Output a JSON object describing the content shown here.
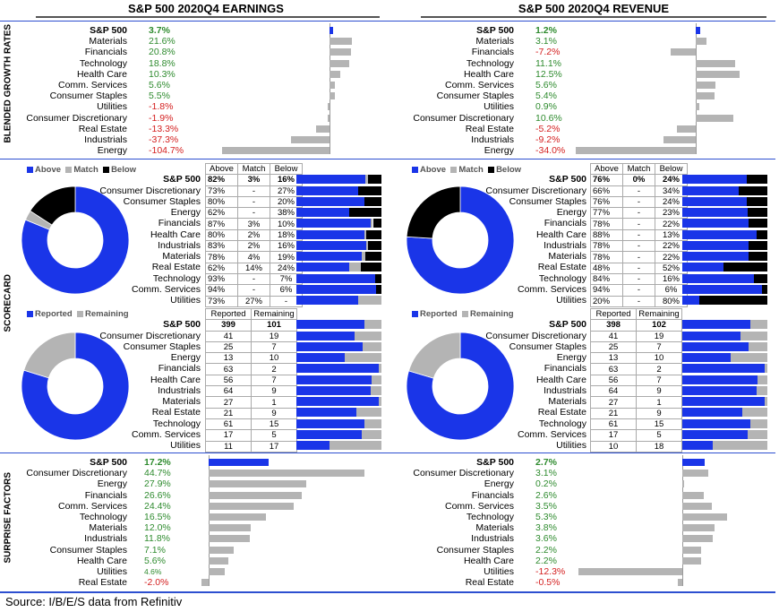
{
  "headers": {
    "earnings": "S&P 500 2020Q4 EARNINGS",
    "revenue": "S&P 500 2020Q4 REVENUE"
  },
  "section_labels": {
    "growth": "BLENDED GROWTH RATES",
    "scorecard": "SCORECARD",
    "surprise": "SURPRISE FACTORS"
  },
  "colors": {
    "blue": "#1a35e8",
    "grey": "#b4b4b4",
    "black": "#000000",
    "positive": "#2e8b2e",
    "negative": "#d42020",
    "rule": "#2d4fd0"
  },
  "legends": {
    "above": "Above",
    "match": "Match",
    "below": "Below",
    "reported": "Reported",
    "remaining": "Remaining"
  },
  "source": "Source: I/B/E/S data from Refinitiv",
  "chart_data": [
    {
      "type": "bar",
      "id": "earnings_growth",
      "categories": [
        "S&P 500",
        "Materials",
        "Financials",
        "Technology",
        "Health Care",
        "Comm. Services",
        "Consumer Staples",
        "Utilities",
        "Consumer Discretionary",
        "Real Estate",
        "Industrials",
        "Energy"
      ],
      "labels": [
        "3.7%",
        "21.6%",
        "20.8%",
        "18.8%",
        "10.3%",
        "5.6%",
        "5.5%",
        "-1.8%",
        "-1.9%",
        "-13.3%",
        "-37.3%",
        "-104.7%"
      ],
      "values": [
        3.7,
        21.6,
        20.8,
        18.8,
        10.3,
        5.6,
        5.5,
        -1.8,
        -1.9,
        -13.3,
        -37.3,
        -104.7
      ]
    },
    {
      "type": "bar",
      "id": "revenue_growth",
      "categories": [
        "S&P 500",
        "Materials",
        "Financials",
        "Technology",
        "Health Care",
        "Comm. Services",
        "Consumer Staples",
        "Utilities",
        "Consumer Discretionary",
        "Real Estate",
        "Industrials",
        "Energy"
      ],
      "labels": [
        "1.2%",
        "3.1%",
        "-7.2%",
        "11.1%",
        "12.5%",
        "5.6%",
        "5.4%",
        "0.9%",
        "10.6%",
        "-5.2%",
        "-9.2%",
        "-34.0%"
      ],
      "values": [
        1.2,
        3.1,
        -7.2,
        11.1,
        12.5,
        5.6,
        5.4,
        0.9,
        10.6,
        -5.2,
        -9.2,
        -34.0
      ]
    },
    {
      "type": "table",
      "id": "earnings_scorecard",
      "columns": [
        "Above",
        "Match",
        "Below"
      ],
      "rows": [
        {
          "name": "S&P 500",
          "cells": [
            "82%",
            "3%",
            "16%"
          ],
          "above": 82,
          "match": 3,
          "below": 16
        },
        {
          "name": "Consumer Discretionary",
          "cells": [
            "73%",
            "-",
            "27%"
          ],
          "above": 73,
          "match": 0,
          "below": 27
        },
        {
          "name": "Consumer Staples",
          "cells": [
            "80%",
            "-",
            "20%"
          ],
          "above": 80,
          "match": 0,
          "below": 20
        },
        {
          "name": "Energy",
          "cells": [
            "62%",
            "-",
            "38%"
          ],
          "above": 62,
          "match": 0,
          "below": 38
        },
        {
          "name": "Financials",
          "cells": [
            "87%",
            "3%",
            "10%"
          ],
          "above": 87,
          "match": 3,
          "below": 10
        },
        {
          "name": "Health Care",
          "cells": [
            "80%",
            "2%",
            "18%"
          ],
          "above": 80,
          "match": 2,
          "below": 18
        },
        {
          "name": "Industrials",
          "cells": [
            "83%",
            "2%",
            "16%"
          ],
          "above": 83,
          "match": 2,
          "below": 16
        },
        {
          "name": "Materials",
          "cells": [
            "78%",
            "4%",
            "19%"
          ],
          "above": 78,
          "match": 4,
          "below": 19
        },
        {
          "name": "Real Estate",
          "cells": [
            "62%",
            "14%",
            "24%"
          ],
          "above": 62,
          "match": 14,
          "below": 24
        },
        {
          "name": "Technology",
          "cells": [
            "93%",
            "-",
            "7%"
          ],
          "above": 93,
          "match": 0,
          "below": 7
        },
        {
          "name": "Comm. Services",
          "cells": [
            "94%",
            "-",
            "6%"
          ],
          "above": 94,
          "match": 0,
          "below": 6
        },
        {
          "name": "Utilities",
          "cells": [
            "73%",
            "27%",
            "-"
          ],
          "above": 73,
          "match": 27,
          "below": 0
        }
      ]
    },
    {
      "type": "table",
      "id": "revenue_scorecard",
      "columns": [
        "Above",
        "Match",
        "Below"
      ],
      "rows": [
        {
          "name": "S&P 500",
          "cells": [
            "76%",
            "0%",
            "24%"
          ],
          "above": 76,
          "match": 0,
          "below": 24
        },
        {
          "name": "Consumer Discretionary",
          "cells": [
            "66%",
            "-",
            "34%"
          ],
          "above": 66,
          "match": 0,
          "below": 34
        },
        {
          "name": "Consumer Staples",
          "cells": [
            "76%",
            "-",
            "24%"
          ],
          "above": 76,
          "match": 0,
          "below": 24
        },
        {
          "name": "Energy",
          "cells": [
            "77%",
            "-",
            "23%"
          ],
          "above": 77,
          "match": 0,
          "below": 23
        },
        {
          "name": "Financials",
          "cells": [
            "78%",
            "-",
            "22%"
          ],
          "above": 78,
          "match": 0,
          "below": 22
        },
        {
          "name": "Health Care",
          "cells": [
            "88%",
            "-",
            "13%"
          ],
          "above": 88,
          "match": 0,
          "below": 13
        },
        {
          "name": "Industrials",
          "cells": [
            "78%",
            "-",
            "22%"
          ],
          "above": 78,
          "match": 0,
          "below": 22
        },
        {
          "name": "Materials",
          "cells": [
            "78%",
            "-",
            "22%"
          ],
          "above": 78,
          "match": 0,
          "below": 22
        },
        {
          "name": "Real Estate",
          "cells": [
            "48%",
            "-",
            "52%"
          ],
          "above": 48,
          "match": 0,
          "below": 52
        },
        {
          "name": "Technology",
          "cells": [
            "84%",
            "-",
            "16%"
          ],
          "above": 84,
          "match": 0,
          "below": 16
        },
        {
          "name": "Comm. Services",
          "cells": [
            "94%",
            "-",
            "6%"
          ],
          "above": 94,
          "match": 0,
          "below": 6
        },
        {
          "name": "Utilities",
          "cells": [
            "20%",
            "-",
            "80%"
          ],
          "above": 20,
          "match": 0,
          "below": 80
        }
      ]
    },
    {
      "type": "pie",
      "id": "earnings_beat_pie",
      "slices": [
        {
          "name": "Above",
          "value": 82
        },
        {
          "name": "Match",
          "value": 3
        },
        {
          "name": "Below",
          "value": 16
        }
      ]
    },
    {
      "type": "pie",
      "id": "revenue_beat_pie",
      "slices": [
        {
          "name": "Above",
          "value": 76
        },
        {
          "name": "Match",
          "value": 0
        },
        {
          "name": "Below",
          "value": 24
        }
      ]
    },
    {
      "type": "table",
      "id": "earnings_reported",
      "columns": [
        "Reported",
        "Remaining"
      ],
      "rows": [
        {
          "name": "S&P 500",
          "reported": 399,
          "remaining": 101
        },
        {
          "name": "Consumer Discretionary",
          "reported": 41,
          "remaining": 19
        },
        {
          "name": "Consumer Staples",
          "reported": 25,
          "remaining": 7
        },
        {
          "name": "Energy",
          "reported": 13,
          "remaining": 10
        },
        {
          "name": "Financials",
          "reported": 63,
          "remaining": 2
        },
        {
          "name": "Health Care",
          "reported": 56,
          "remaining": 7
        },
        {
          "name": "Industrials",
          "reported": 64,
          "remaining": 9
        },
        {
          "name": "Materials",
          "reported": 27,
          "remaining": 1
        },
        {
          "name": "Real Estate",
          "reported": 21,
          "remaining": 9
        },
        {
          "name": "Technology",
          "reported": 61,
          "remaining": 15
        },
        {
          "name": "Comm. Services",
          "reported": 17,
          "remaining": 5
        },
        {
          "name": "Utilities",
          "reported": 11,
          "remaining": 17
        }
      ]
    },
    {
      "type": "table",
      "id": "revenue_reported",
      "columns": [
        "Reported",
        "Remaining"
      ],
      "rows": [
        {
          "name": "S&P 500",
          "reported": 398,
          "remaining": 102
        },
        {
          "name": "Consumer Discretionary",
          "reported": 41,
          "remaining": 19
        },
        {
          "name": "Consumer Staples",
          "reported": 25,
          "remaining": 7
        },
        {
          "name": "Energy",
          "reported": 13,
          "remaining": 10
        },
        {
          "name": "Financials",
          "reported": 63,
          "remaining": 2
        },
        {
          "name": "Health Care",
          "reported": 56,
          "remaining": 7
        },
        {
          "name": "Industrials",
          "reported": 64,
          "remaining": 9
        },
        {
          "name": "Materials",
          "reported": 27,
          "remaining": 1
        },
        {
          "name": "Real Estate",
          "reported": 21,
          "remaining": 9
        },
        {
          "name": "Technology",
          "reported": 61,
          "remaining": 15
        },
        {
          "name": "Comm. Services",
          "reported": 17,
          "remaining": 5
        },
        {
          "name": "Utilities",
          "reported": 10,
          "remaining": 18
        }
      ]
    },
    {
      "type": "pie",
      "id": "earnings_reported_pie",
      "slices": [
        {
          "name": "Reported",
          "value": 399
        },
        {
          "name": "Remaining",
          "value": 101
        }
      ]
    },
    {
      "type": "pie",
      "id": "revenue_reported_pie",
      "slices": [
        {
          "name": "Reported",
          "value": 398
        },
        {
          "name": "Remaining",
          "value": 102
        }
      ]
    },
    {
      "type": "bar",
      "id": "earnings_surprise",
      "categories": [
        "S&P 500",
        "Consumer Discretionary",
        "Energy",
        "Financials",
        "Comm. Services",
        "Technology",
        "Materials",
        "Industrials",
        "Consumer Staples",
        "Health Care",
        "Utilities",
        "Real Estate"
      ],
      "labels": [
        "17.2%",
        "44.7%",
        "27.9%",
        "26.6%",
        "24.4%",
        "16.5%",
        "12.0%",
        "11.8%",
        "7.1%",
        "5.6%",
        "4.6%",
        "-2.0%"
      ],
      "values": [
        17.2,
        44.7,
        27.9,
        26.6,
        24.4,
        16.5,
        12.0,
        11.8,
        7.1,
        5.6,
        4.6,
        -2.0
      ]
    },
    {
      "type": "bar",
      "id": "revenue_surprise",
      "categories": [
        "S&P 500",
        "Consumer Discretionary",
        "Energy",
        "Financials",
        "Comm. Services",
        "Technology",
        "Materials",
        "Industrials",
        "Consumer Staples",
        "Health Care",
        "Utilities",
        "Real Estate"
      ],
      "labels": [
        "2.7%",
        "3.1%",
        "0.2%",
        "2.6%",
        "3.5%",
        "5.3%",
        "3.8%",
        "3.6%",
        "2.2%",
        "2.2%",
        "-12.3%",
        "-0.5%"
      ],
      "values": [
        2.7,
        3.1,
        0.2,
        2.6,
        3.5,
        5.3,
        3.8,
        3.6,
        2.2,
        2.2,
        -12.3,
        -0.5
      ]
    }
  ]
}
